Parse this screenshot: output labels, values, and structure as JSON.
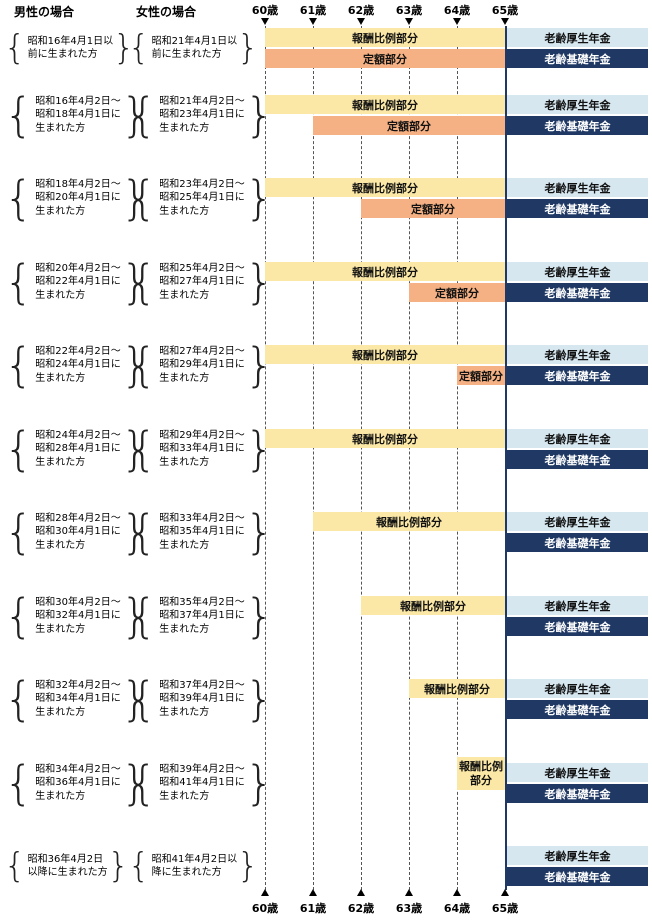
{
  "header": {
    "male": "男性の場合",
    "female": "女性の場合"
  },
  "ages": [
    "60歳",
    "61歳",
    "62歳",
    "63歳",
    "64歳",
    "65歳"
  ],
  "labels": {
    "earnings": "報酬比例部分",
    "fixed": "定額部分",
    "kosei": "老齢厚生年金",
    "kiso": "老齢基礎年金",
    "brace_left": "{",
    "brace_right": "}"
  },
  "colors": {
    "earnings": "#FBE8A6",
    "fixed": "#F5B183",
    "kosei": "#D6E7F0",
    "kiso": "#1F3864"
  },
  "rows": [
    {
      "male": "昭和16年4月1日以\n前に生まれた方",
      "female": "昭和21年4月1日以\n前に生まれた方",
      "earnings_start": 60,
      "fixed_start": 60
    },
    {
      "male": "昭和16年4月2日〜\n昭和18年4月1日に\n生まれた方",
      "female": "昭和21年4月2日〜\n昭和23年4月1日に\n生まれた方",
      "earnings_start": 60,
      "fixed_start": 61
    },
    {
      "male": "昭和18年4月2日〜\n昭和20年4月1日に\n生まれた方",
      "female": "昭和23年4月2日〜\n昭和25年4月1日に\n生まれた方",
      "earnings_start": 60,
      "fixed_start": 62
    },
    {
      "male": "昭和20年4月2日〜\n昭和22年4月1日に\n生まれた方",
      "female": "昭和25年4月2日〜\n昭和27年4月1日に\n生まれた方",
      "earnings_start": 60,
      "fixed_start": 63
    },
    {
      "male": "昭和22年4月2日〜\n昭和24年4月1日に\n生まれた方",
      "female": "昭和27年4月2日〜\n昭和29年4月1日に\n生まれた方",
      "earnings_start": 60,
      "fixed_start": 64
    },
    {
      "male": "昭和24年4月2日〜\n昭和28年4月1日に\n生まれた方",
      "female": "昭和29年4月2日〜\n昭和33年4月1日に\n生まれた方",
      "earnings_start": 60,
      "fixed_start": null
    },
    {
      "male": "昭和28年4月2日〜\n昭和30年4月1日に\n生まれた方",
      "female": "昭和33年4月2日〜\n昭和35年4月1日に\n生まれた方",
      "earnings_start": 61,
      "fixed_start": null
    },
    {
      "male": "昭和30年4月2日〜\n昭和32年4月1日に\n生まれた方",
      "female": "昭和35年4月2日〜\n昭和37年4月1日に\n生まれた方",
      "earnings_start": 62,
      "fixed_start": null
    },
    {
      "male": "昭和32年4月2日〜\n昭和34年4月1日に\n生まれた方",
      "female": "昭和37年4月2日〜\n昭和39年4月1日に\n生まれた方",
      "earnings_start": 63,
      "fixed_start": null
    },
    {
      "male": "昭和34年4月2日〜\n昭和36年4月1日に\n生まれた方",
      "female": "昭和39年4月2日〜\n昭和41年4月1日に\n生まれた方",
      "earnings_start": 64,
      "fixed_start": null
    },
    {
      "male": "昭和36年4月2日\n以降に生まれた方",
      "female": "昭和41年4月2日以\n降に生まれた方",
      "earnings_start": null,
      "fixed_start": null
    }
  ]
}
